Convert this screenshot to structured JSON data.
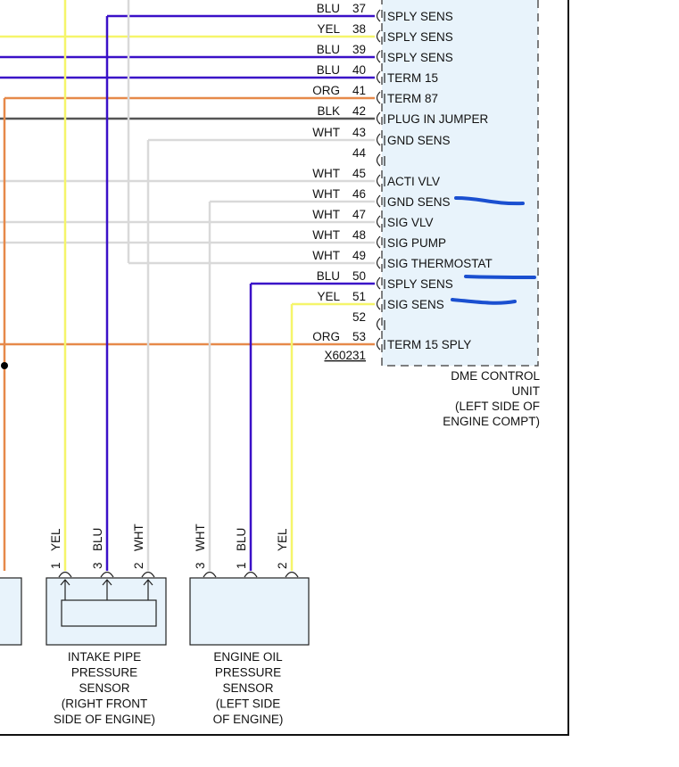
{
  "colors": {
    "BLU": "#3a10c8",
    "YEL": "#f5f56a",
    "WHT": "#d9d9d9",
    "ORG": "#e6894a",
    "BLK": "#555555",
    "box": "#e8f3fb",
    "annotation": "#1a4fd0"
  },
  "connector_id": "X60231",
  "pins": [
    {
      "num": "37",
      "color": "BLU",
      "label": "SPLY SENS"
    },
    {
      "num": "38",
      "color": "YEL",
      "label": "SPLY SENS"
    },
    {
      "num": "39",
      "color": "BLU",
      "label": "SPLY SENS"
    },
    {
      "num": "40",
      "color": "BLU",
      "label": "TERM 15"
    },
    {
      "num": "41",
      "color": "ORG",
      "label": "TERM 87"
    },
    {
      "num": "42",
      "color": "BLK",
      "label": "PLUG IN JUMPER"
    },
    {
      "num": "43",
      "color": "WHT",
      "label": "GND SENS"
    },
    {
      "num": "44",
      "color": "",
      "label": ""
    },
    {
      "num": "45",
      "color": "WHT",
      "label": "ACTI VLV"
    },
    {
      "num": "46",
      "color": "WHT",
      "label": "GND SENS"
    },
    {
      "num": "47",
      "color": "WHT",
      "label": "SIG VLV"
    },
    {
      "num": "48",
      "color": "WHT",
      "label": "SIG PUMP"
    },
    {
      "num": "49",
      "color": "WHT",
      "label": "SIG THERMOSTAT"
    },
    {
      "num": "50",
      "color": "BLU",
      "label": "SPLY SENS"
    },
    {
      "num": "51",
      "color": "YEL",
      "label": "SIG SENS"
    },
    {
      "num": "52",
      "color": "",
      "label": ""
    },
    {
      "num": "53",
      "color": "ORG",
      "label": "TERM 15 SPLY"
    }
  ],
  "dme": {
    "lines": [
      "DME CONTROL",
      "UNIT",
      "(LEFT SIDE OF",
      "ENGINE COMPT)"
    ]
  },
  "intake_sensor": {
    "pins": [
      {
        "num": "1",
        "color": "YEL"
      },
      {
        "num": "3",
        "color": "BLU"
      },
      {
        "num": "2",
        "color": "WHT"
      }
    ],
    "lines": [
      "INTAKE PIPE",
      "PRESSURE",
      "SENSOR",
      "(RIGHT FRONT",
      "SIDE OF ENGINE)"
    ]
  },
  "oil_sensor": {
    "pins": [
      {
        "num": "3",
        "color": "WHT"
      },
      {
        "num": "1",
        "color": "BLU"
      },
      {
        "num": "2",
        "color": "YEL"
      }
    ],
    "lines": [
      "ENGINE OIL",
      "PRESSURE",
      "SENSOR",
      "(LEFT SIDE",
      "OF ENGINE)"
    ]
  }
}
